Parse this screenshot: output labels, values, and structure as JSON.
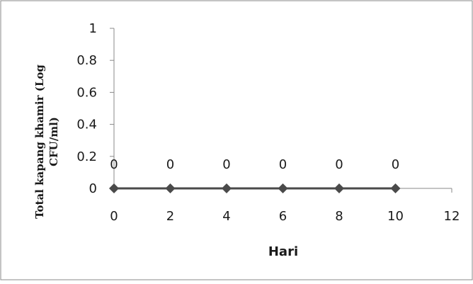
{
  "chart_data": {
    "type": "line",
    "xlabel": "Hari",
    "ylabel_line1": "Total kapang khamir (Log",
    "ylabel_line2": "CFU/ml)",
    "x_ticks": [
      "0",
      "2",
      "4",
      "6",
      "8",
      "10",
      "12"
    ],
    "y_ticks": [
      "0",
      "0.2",
      "0.4",
      "0.6",
      "0.8",
      "1"
    ],
    "xlim": [
      0,
      12
    ],
    "ylim": [
      0,
      1
    ],
    "grid": false,
    "legend": "none",
    "series": [
      {
        "x": [
          0,
          2,
          4,
          6,
          8,
          10
        ],
        "values": [
          0,
          0,
          0,
          0,
          0,
          0
        ],
        "data_labels": [
          "0",
          "0",
          "0",
          "0",
          "0",
          "0"
        ],
        "color": "#4a4a4a",
        "marker": "diamond"
      }
    ]
  }
}
